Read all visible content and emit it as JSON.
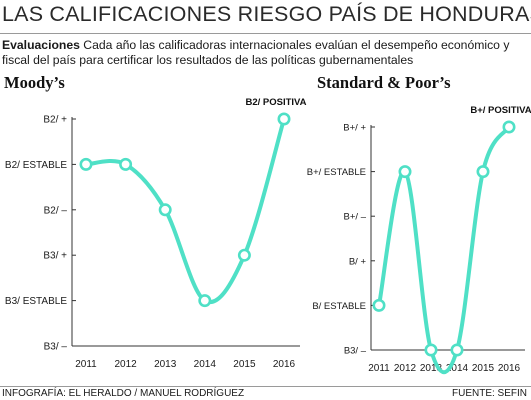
{
  "header": {
    "title": "LAS CALIFICACIONES RIESGO PAÍS DE HONDURAS",
    "intro_lead": "Evaluaciones",
    "intro_text": "Cada año las calificadoras internacionales evalúan el desempeño económico y fiscal del país para certificar los resultados de las políticas gubernamentales"
  },
  "footer": {
    "credit": "INFOGRAFÍA: EL HERALDO / MANUEL RODRÍGUEZ",
    "source": "FUENTE: SEFIN"
  },
  "colors": {
    "line": "#4fe0c6",
    "axis": "#333333",
    "text": "#1a1a1a"
  },
  "chart_data": [
    {
      "type": "line",
      "title": "Moody’s",
      "annotation": "B2/ POSITIVA",
      "x": [
        "2011",
        "2012",
        "2013",
        "2014",
        "2015",
        "2016"
      ],
      "y_categories": [
        "B3/ –",
        "B3/ ESTABLE",
        "B3/ +",
        "B2/ –",
        "B2/ ESTABLE",
        "B2/ +"
      ],
      "series": [
        {
          "values": [
            "B2/ ESTABLE",
            "B2/ ESTABLE",
            "B2/ –",
            "B3/ ESTABLE",
            "B3/ +",
            "B2/ +"
          ]
        }
      ],
      "grid": false
    },
    {
      "type": "line",
      "title": "Standard & Poor’s",
      "annotation": "B+/ POSITIVA",
      "x": [
        "2011",
        "2012",
        "2013",
        "2014",
        "2015",
        "2016"
      ],
      "y_categories": [
        "B3/ –",
        "B/ ESTABLE",
        "B/ +",
        "B+/ –",
        "B+/ ESTABLE",
        "B+/ +"
      ],
      "series": [
        {
          "values": [
            "B/ ESTABLE",
            "B+/ ESTABLE",
            "B3/ –",
            "B3/ –",
            "B+/ ESTABLE",
            "B+/ +"
          ]
        }
      ],
      "grid": false
    }
  ]
}
